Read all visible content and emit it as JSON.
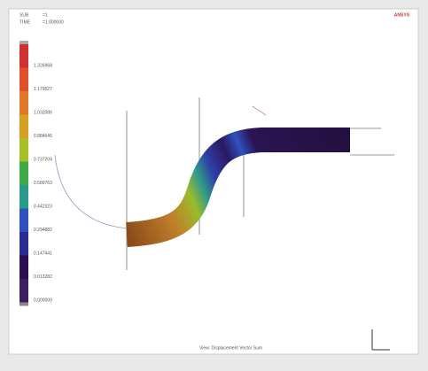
{
  "header": {
    "step_label": "SUB",
    "step_value": "=1",
    "time_label": "TIME",
    "time_value": "=1.000000",
    "brand": "ANSYS"
  },
  "legend": {
    "labels": [
      "1.326968",
      "1.179527",
      "1.032086",
      "0.884645",
      "0.737204",
      "0.589763",
      "0.442323",
      "0.294882",
      "0.147441",
      "0.013282",
      "0.000000"
    ]
  },
  "footer": {
    "caption": "View: Displacement Vector Sum"
  }
}
